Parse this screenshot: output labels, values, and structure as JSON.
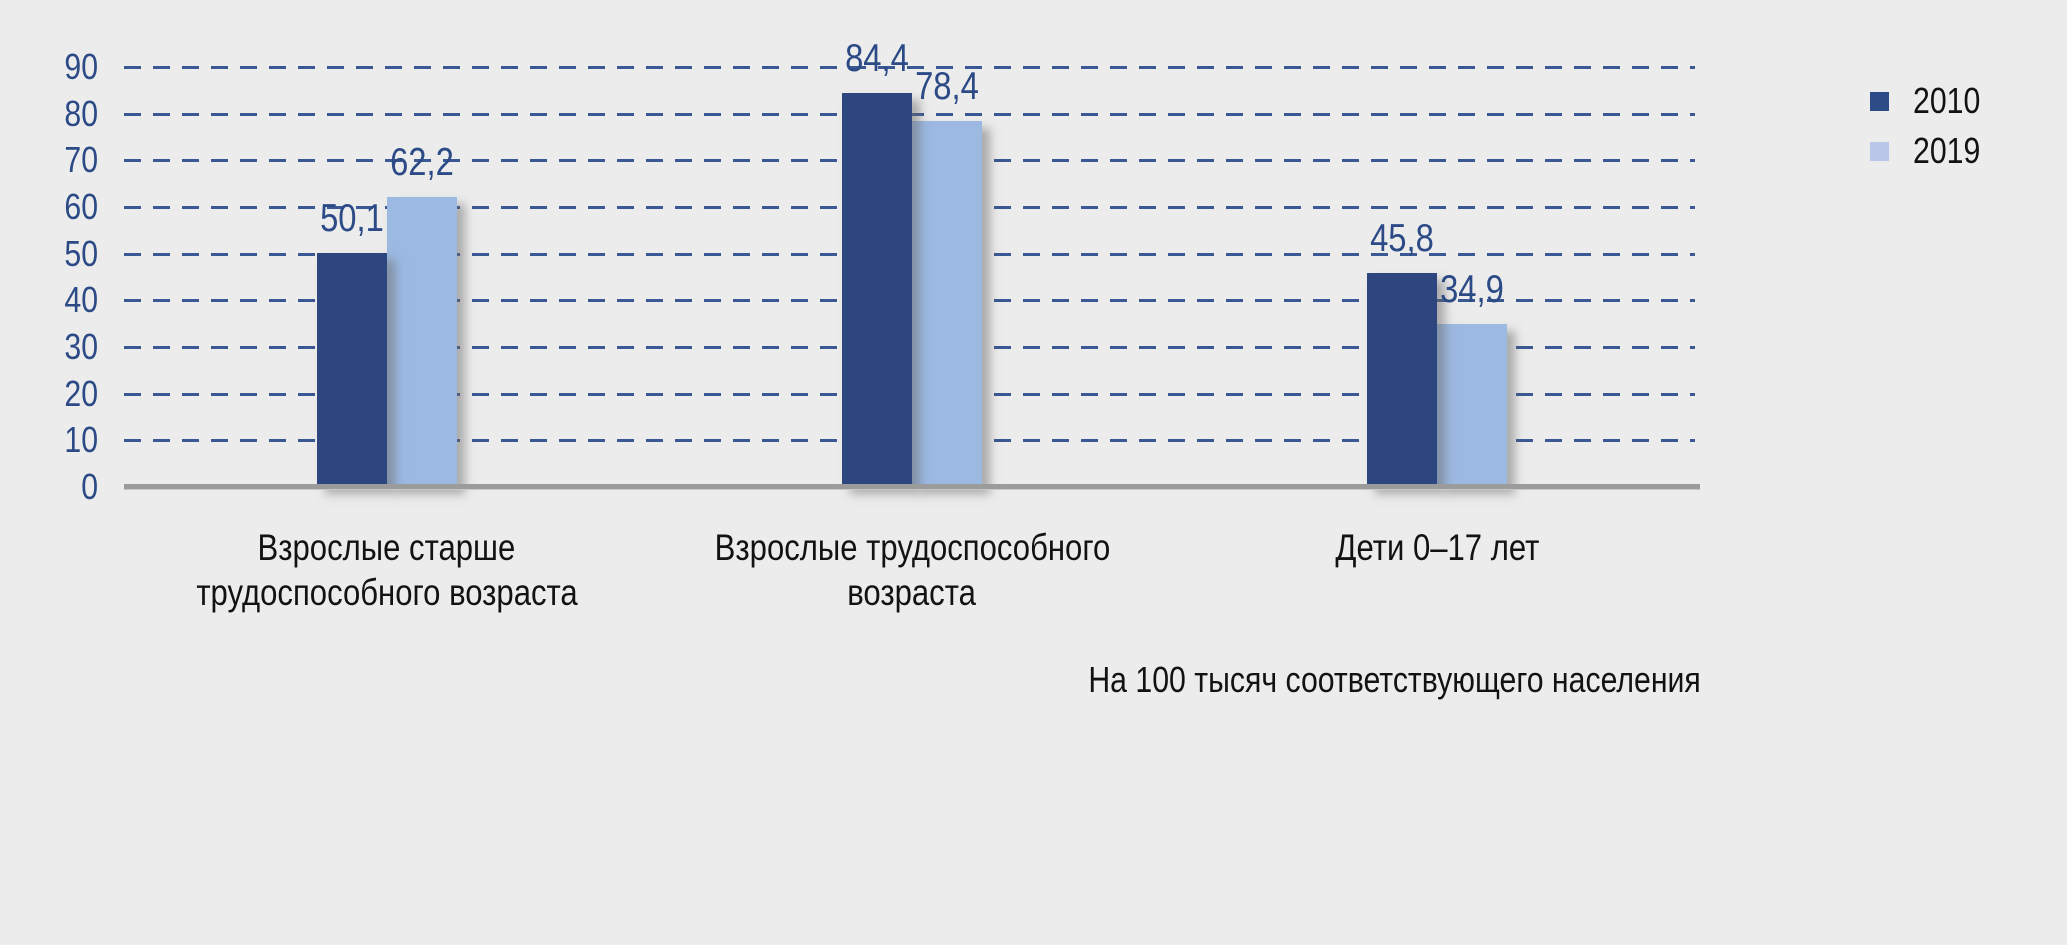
{
  "page": {
    "background_color": "#ececec"
  },
  "legend": {
    "position": "top-right",
    "items": [
      {
        "label": "2010",
        "swatch_color": "#2d4b87"
      },
      {
        "label": "2019",
        "swatch_color": "#b9c6e8"
      }
    ]
  },
  "chart_data": {
    "type": "bar",
    "title": "",
    "caption": "На 100 тысяч соответствующего населения",
    "categories": [
      "Взрослые старше трудоспособного возраста",
      "Взрослые трудоспособного возраста",
      "Дети 0–17 лет"
    ],
    "categories_multiline": [
      [
        "Взрослые старше",
        "трудоспособного возраста"
      ],
      [
        "Взрослые трудоспособного",
        "возраста"
      ],
      [
        "Дети 0–17 лет"
      ]
    ],
    "series": [
      {
        "name": "2010",
        "color": "#2e4680",
        "values": [
          50.1,
          84.4,
          45.8
        ],
        "labels": [
          "50,1",
          "84,4",
          "45,8"
        ]
      },
      {
        "name": "2019",
        "color": "#9cb9e2",
        "values": [
          62.2,
          78.4,
          34.9
        ],
        "labels": [
          "62,2",
          "78,4",
          "34,9"
        ]
      }
    ],
    "xlabel": "",
    "ylabel": "",
    "ylim": [
      0,
      90
    ],
    "yticks": [
      "0",
      "10",
      "20",
      "30",
      "40",
      "50",
      "60",
      "70",
      "80",
      "90"
    ],
    "grid": "horizontal-dashed",
    "gridline_color": "#31508e",
    "axis_tick_label_color": "#2b4a86",
    "value_label_color": "#2b4a86",
    "baseline_color": "#9b9b9b",
    "legend_position": "top-right"
  }
}
